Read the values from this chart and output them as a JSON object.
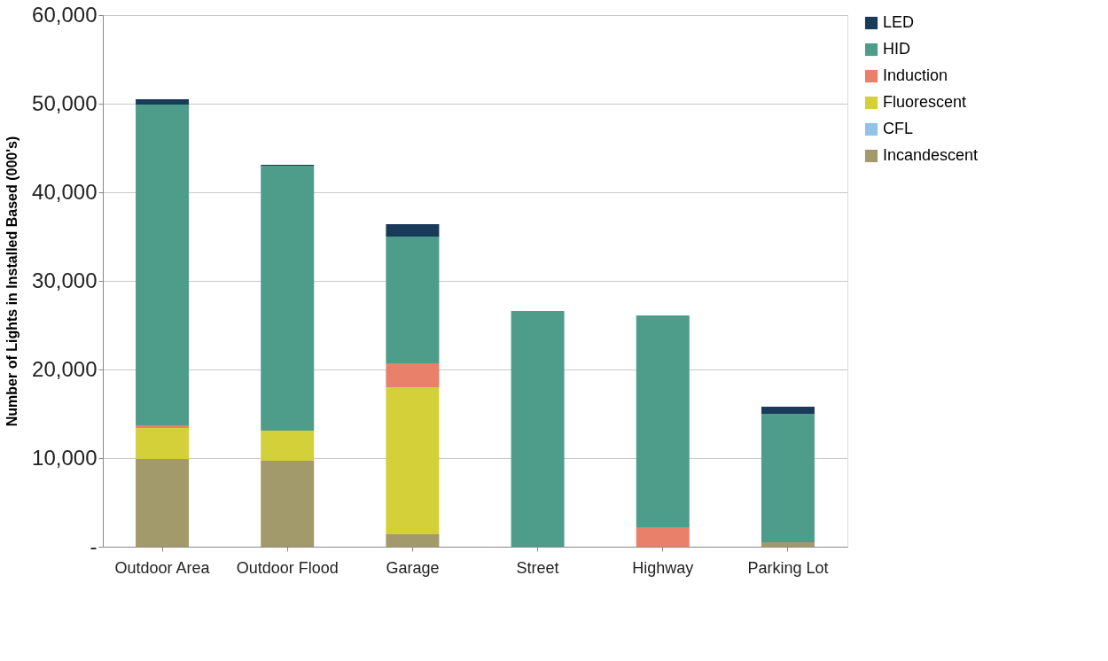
{
  "chart_data": {
    "type": "bar",
    "stacked": true,
    "ylabel": "Number of Lights in Installed Based (000's)",
    "categories": [
      "Outdoor Area",
      "Outdoor Flood",
      "Garage",
      "Street",
      "Highway",
      "Parking Lot"
    ],
    "series": [
      {
        "name": "Incandescent",
        "color": "#a39a6b",
        "values": [
          9900,
          9700,
          1400,
          0,
          0,
          500
        ]
      },
      {
        "name": "CFL",
        "color": "#92c3e6",
        "values": [
          0,
          0,
          0,
          0,
          0,
          0
        ]
      },
      {
        "name": "Fluorescent",
        "color": "#d4d03a",
        "values": [
          3500,
          3400,
          16600,
          0,
          0,
          0
        ]
      },
      {
        "name": "Induction",
        "color": "#e8806a",
        "values": [
          300,
          0,
          2700,
          0,
          2200,
          0
        ]
      },
      {
        "name": "HID",
        "color": "#4e9c8a",
        "values": [
          36200,
          29900,
          14300,
          26600,
          23900,
          14500
        ]
      },
      {
        "name": "LED",
        "color": "#1a3a5a",
        "values": [
          600,
          100,
          1400,
          0,
          0,
          800
        ]
      }
    ],
    "ylim": [
      0,
      60000
    ],
    "yticks": [
      {
        "value": 0,
        "label": "-"
      },
      {
        "value": 10000,
        "label": "10,000"
      },
      {
        "value": 20000,
        "label": "20,000"
      },
      {
        "value": 30000,
        "label": "30,000"
      },
      {
        "value": 40000,
        "label": "40,000"
      },
      {
        "value": 50000,
        "label": "50,000"
      },
      {
        "value": 60000,
        "label": "60,000"
      }
    ],
    "grid": "y",
    "legend": "right"
  }
}
